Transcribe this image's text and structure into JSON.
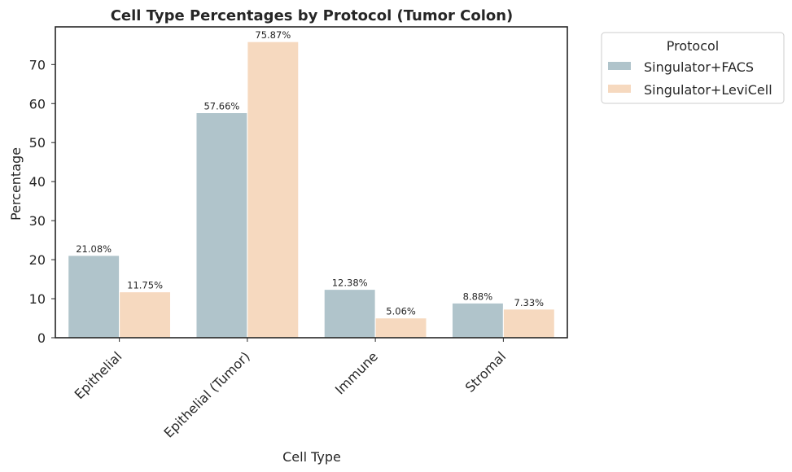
{
  "chart_data": {
    "type": "bar",
    "title": "Cell Type Percentages by Protocol (Tumor Colon)",
    "xlabel": "Cell Type",
    "ylabel": "Percentage",
    "categories": [
      "Epithelial",
      "Epithelial (Tumor)",
      "Immune",
      "Stromal"
    ],
    "series": [
      {
        "name": "Singulator+FACS",
        "color": "#b0c4cb",
        "values": [
          21.08,
          57.66,
          12.38,
          8.88
        ],
        "labels": [
          "21.08%",
          "57.66%",
          "12.38%",
          "8.88%"
        ]
      },
      {
        "name": "Singulator+LeviCell",
        "color": "#f6d9bf",
        "values": [
          11.75,
          75.87,
          5.06,
          7.33
        ],
        "labels": [
          "11.75%",
          "75.87%",
          "5.06%",
          "7.33%"
        ]
      }
    ],
    "ylim": [
      0,
      79.66
    ],
    "yticks": [
      0,
      10,
      20,
      30,
      40,
      50,
      60,
      70
    ],
    "grid": false,
    "legend": {
      "title": "Protocol",
      "placement": "outside-top-right"
    }
  }
}
